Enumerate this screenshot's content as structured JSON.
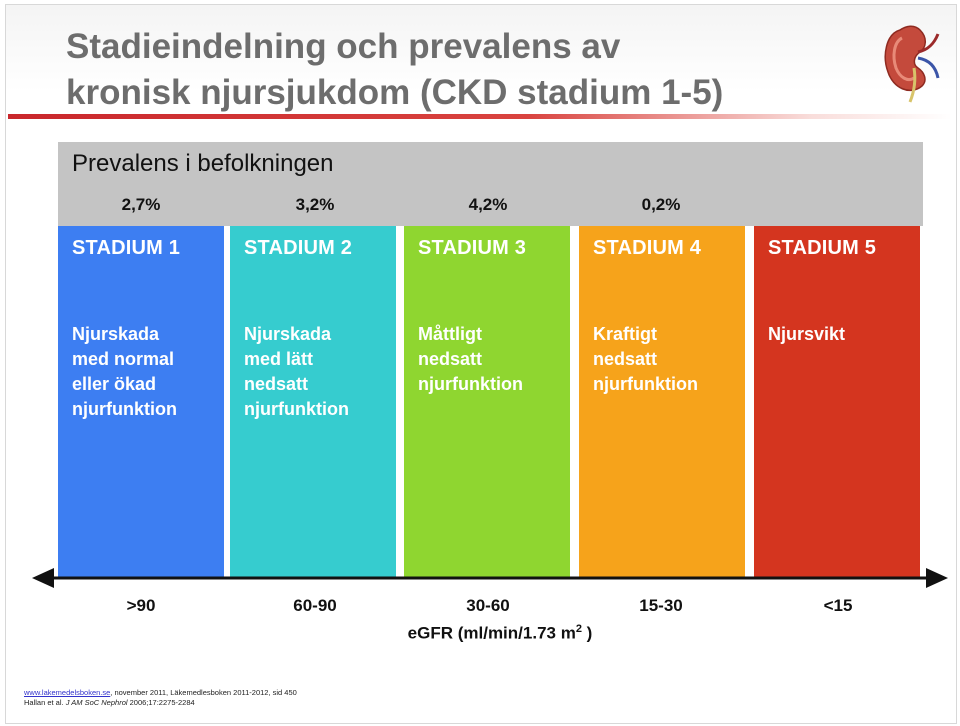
{
  "title": {
    "line1": "Stadieindelning och prevalens av",
    "line2": "kronisk njursjukdom (CKD stadium 1-5)"
  },
  "prevalence": {
    "label": "Prevalens i befolkningen",
    "values": [
      "2,7%",
      "3,2%",
      "4,2%",
      "0,2%"
    ]
  },
  "stages": [
    {
      "name": "STADIUM 1",
      "description": "Njurskada med normal eller ökad njurfunktion",
      "color": "#3d7ef2"
    },
    {
      "name": "STADIUM 2",
      "description": "Njurskada med lätt nedsatt njurfunktion",
      "color": "#36cccf"
    },
    {
      "name": "STADIUM 3",
      "description": "Måttligt nedsatt njurfunktion",
      "color": "#8fd630"
    },
    {
      "name": "STADIUM 4",
      "description": "Kraftigt nedsatt njurfunktion",
      "color": "#f6a31b"
    },
    {
      "name": "STADIUM 5",
      "description": "Njursvikt",
      "color": "#d4351f"
    }
  ],
  "egfr": {
    "ranges": [
      ">90",
      "60-90",
      "30-60",
      "15-30",
      "<15"
    ],
    "label": "eGFR (ml/min/1.73 m",
    "label_sup": "2",
    "label_end": " )"
  },
  "references": {
    "link": "www.lakemedelsboken.se",
    "line1_rest": ", november 2011, Läkemedlesboken 2011-2012, sid 450",
    "line2_prefix": "Hallan et al. ",
    "line2_journal": "J AM SoC Nephrol",
    "line2_rest": " 2006;17:2275-2284"
  },
  "icons": {
    "logo": "kidney-icon",
    "axis": "double-arrow-icon"
  }
}
